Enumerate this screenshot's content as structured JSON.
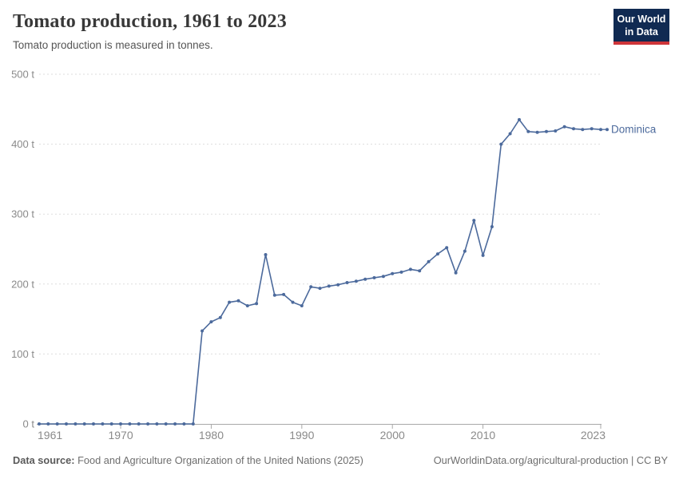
{
  "header": {
    "title": "Tomato production, 1961 to 2023",
    "subtitle": "Tomato production is measured in tonnes."
  },
  "logo": {
    "line1": "Our World",
    "line2": "in Data",
    "bg_color": "#102A52",
    "accent_color": "#CE3539"
  },
  "footer": {
    "source_label": "Data source:",
    "source_text": " Food and Agriculture Organization of the United Nations (2025)",
    "right_text": "OurWorldinData.org/agricultural-production | CC BY"
  },
  "chart_data": {
    "type": "line",
    "title": "Tomato production, 1961 to 2023",
    "unit": "tonnes",
    "xlabel": "",
    "ylabel": "",
    "xlim": [
      1961,
      2023
    ],
    "ylim": [
      0,
      500
    ],
    "grid": true,
    "y_ticks": [
      0,
      100,
      200,
      300,
      400,
      500
    ],
    "y_tick_labels": [
      "0 t",
      "100 t",
      "200 t",
      "300 t",
      "400 t",
      "500 t"
    ],
    "x_ticks": [
      1961,
      1970,
      1980,
      1990,
      2000,
      2010,
      2023
    ],
    "x_tick_labels": [
      "1961",
      "1970",
      "1980",
      "1990",
      "2000",
      "2010",
      "2023"
    ],
    "legend_position": "end-of-line-label",
    "series": [
      {
        "name": "Dominica",
        "color": "#4C6A9C",
        "x": [
          1961,
          1962,
          1963,
          1964,
          1965,
          1966,
          1967,
          1968,
          1969,
          1970,
          1971,
          1972,
          1973,
          1974,
          1975,
          1976,
          1977,
          1978,
          1979,
          1980,
          1981,
          1982,
          1983,
          1984,
          1985,
          1986,
          1987,
          1988,
          1989,
          1990,
          1991,
          1992,
          1993,
          1994,
          1995,
          1996,
          1997,
          1998,
          1999,
          2000,
          2001,
          2002,
          2003,
          2004,
          2005,
          2006,
          2007,
          2008,
          2009,
          2010,
          2011,
          2012,
          2013,
          2014,
          2015,
          2016,
          2017,
          2018,
          2019,
          2020,
          2021,
          2022,
          2023
        ],
        "values": [
          0,
          0,
          0,
          0,
          0,
          0,
          0,
          0,
          0,
          0,
          0,
          0,
          0,
          0,
          0,
          0,
          0,
          0,
          133,
          146,
          152,
          174,
          176,
          169,
          172,
          242,
          184,
          185,
          174,
          169,
          196,
          194,
          197,
          199,
          202,
          204,
          207,
          209,
          211,
          215,
          217,
          221,
          219,
          232,
          243,
          252,
          216,
          247,
          291,
          241,
          282,
          400,
          415,
          435,
          418,
          417,
          418,
          419,
          425,
          422,
          421,
          422,
          421
        ]
      }
    ]
  },
  "chart_style": {
    "gridline_color": "#dddddd",
    "axis_color": "#a8a8a8",
    "tick_label_color": "#8a8a8a"
  }
}
